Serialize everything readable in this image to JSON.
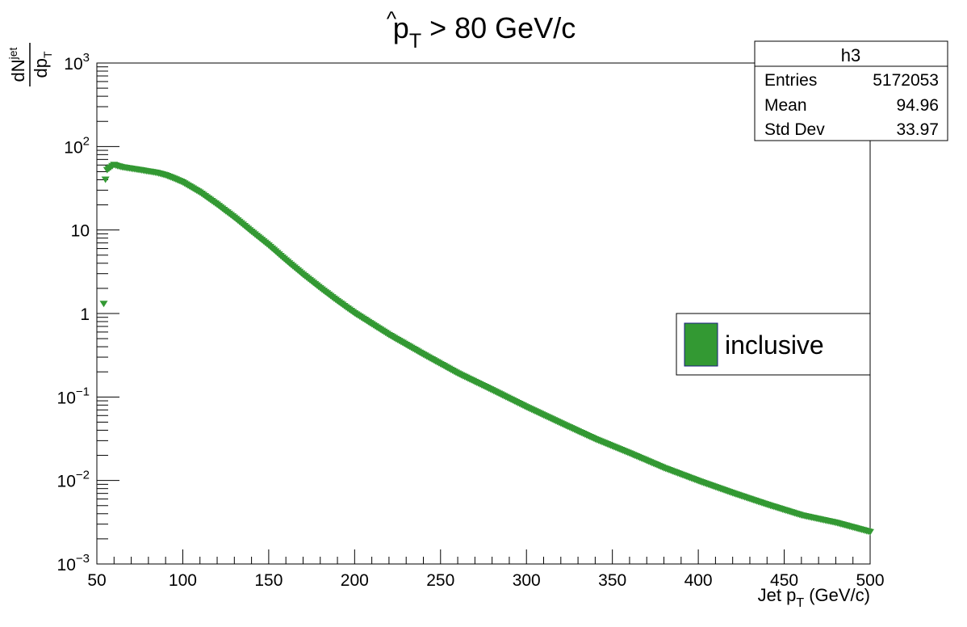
{
  "chart_data": {
    "type": "scatter",
    "title_main": "p",
    "title_hat": "^",
    "title_sub": "T",
    "title_rest": " > 80 GeV/c",
    "xlabel_main": "Jet p",
    "xlabel_sub": "T",
    "xlabel_rest": " (GeV/c)",
    "ylabel_num_main": "dN",
    "ylabel_num_sup": "jet",
    "ylabel_den_main": "dp",
    "ylabel_den_sub": "T",
    "xlim": [
      50,
      500
    ],
    "ylim": [
      0.001,
      1000
    ],
    "y_scale": "log",
    "grid": false,
    "x_ticks": [
      {
        "value": 50,
        "label": "50"
      },
      {
        "value": 100,
        "label": "100"
      },
      {
        "value": 150,
        "label": "150"
      },
      {
        "value": 200,
        "label": "200"
      },
      {
        "value": 250,
        "label": "250"
      },
      {
        "value": 300,
        "label": "300"
      },
      {
        "value": 350,
        "label": "350"
      },
      {
        "value": 400,
        "label": "400"
      },
      {
        "value": 450,
        "label": "450"
      },
      {
        "value": 500,
        "label": "500"
      }
    ],
    "y_ticks": [
      {
        "value": 0.001,
        "base": "10",
        "exp": "−3",
        "plain": ""
      },
      {
        "value": 0.01,
        "base": "10",
        "exp": "−2",
        "plain": ""
      },
      {
        "value": 0.1,
        "base": "10",
        "exp": "−1",
        "plain": ""
      },
      {
        "value": 1,
        "base": "",
        "exp": "",
        "plain": "1"
      },
      {
        "value": 10,
        "base": "",
        "exp": "",
        "plain": "10"
      },
      {
        "value": 100,
        "base": "10",
        "exp": "2",
        "plain": ""
      },
      {
        "value": 1000,
        "base": "10",
        "exp": "3",
        "plain": ""
      }
    ],
    "series": [
      {
        "name": "inclusive",
        "color": "#339933",
        "x": [
          54,
          55,
          56,
          58,
          60,
          62,
          65,
          70,
          75,
          80,
          85,
          90,
          95,
          100,
          110,
          120,
          130,
          140,
          150,
          160,
          170,
          180,
          190,
          200,
          220,
          240,
          260,
          280,
          300,
          320,
          340,
          360,
          380,
          400,
          420,
          440,
          460,
          480,
          500
        ],
        "y": [
          1.3,
          40,
          52,
          56,
          60,
          58,
          56,
          54,
          52,
          50,
          48,
          45,
          41,
          37,
          28,
          20,
          14,
          9.5,
          6.5,
          4.3,
          2.9,
          2.0,
          1.4,
          1.0,
          0.55,
          0.32,
          0.19,
          0.12,
          0.075,
          0.048,
          0.031,
          0.021,
          0.014,
          0.0098,
          0.007,
          0.0051,
          0.0038,
          0.0031,
          0.0024
        ]
      }
    ],
    "stats_box": {
      "title": "h3",
      "rows": [
        {
          "label": "Entries",
          "value": "5172053"
        },
        {
          "label": "Mean",
          "value": "94.96"
        },
        {
          "label": "Std Dev",
          "value": "33.97"
        }
      ]
    },
    "legend": {
      "placement": "right",
      "entries": [
        {
          "label": "inclusive",
          "color": "#339933",
          "border": "#1a1a80"
        }
      ]
    }
  }
}
